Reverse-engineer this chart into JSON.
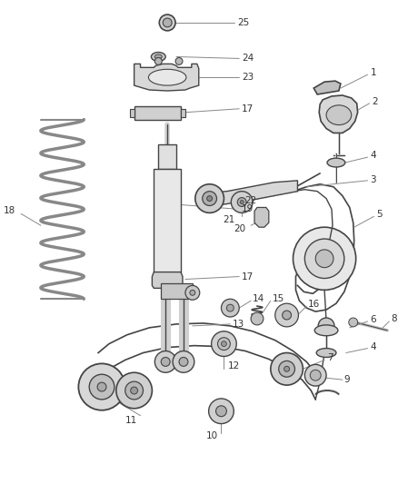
{
  "bg_color": "#ffffff",
  "line_color": "#444444",
  "label_color": "#333333",
  "fig_w": 4.38,
  "fig_h": 5.33,
  "dpi": 100
}
